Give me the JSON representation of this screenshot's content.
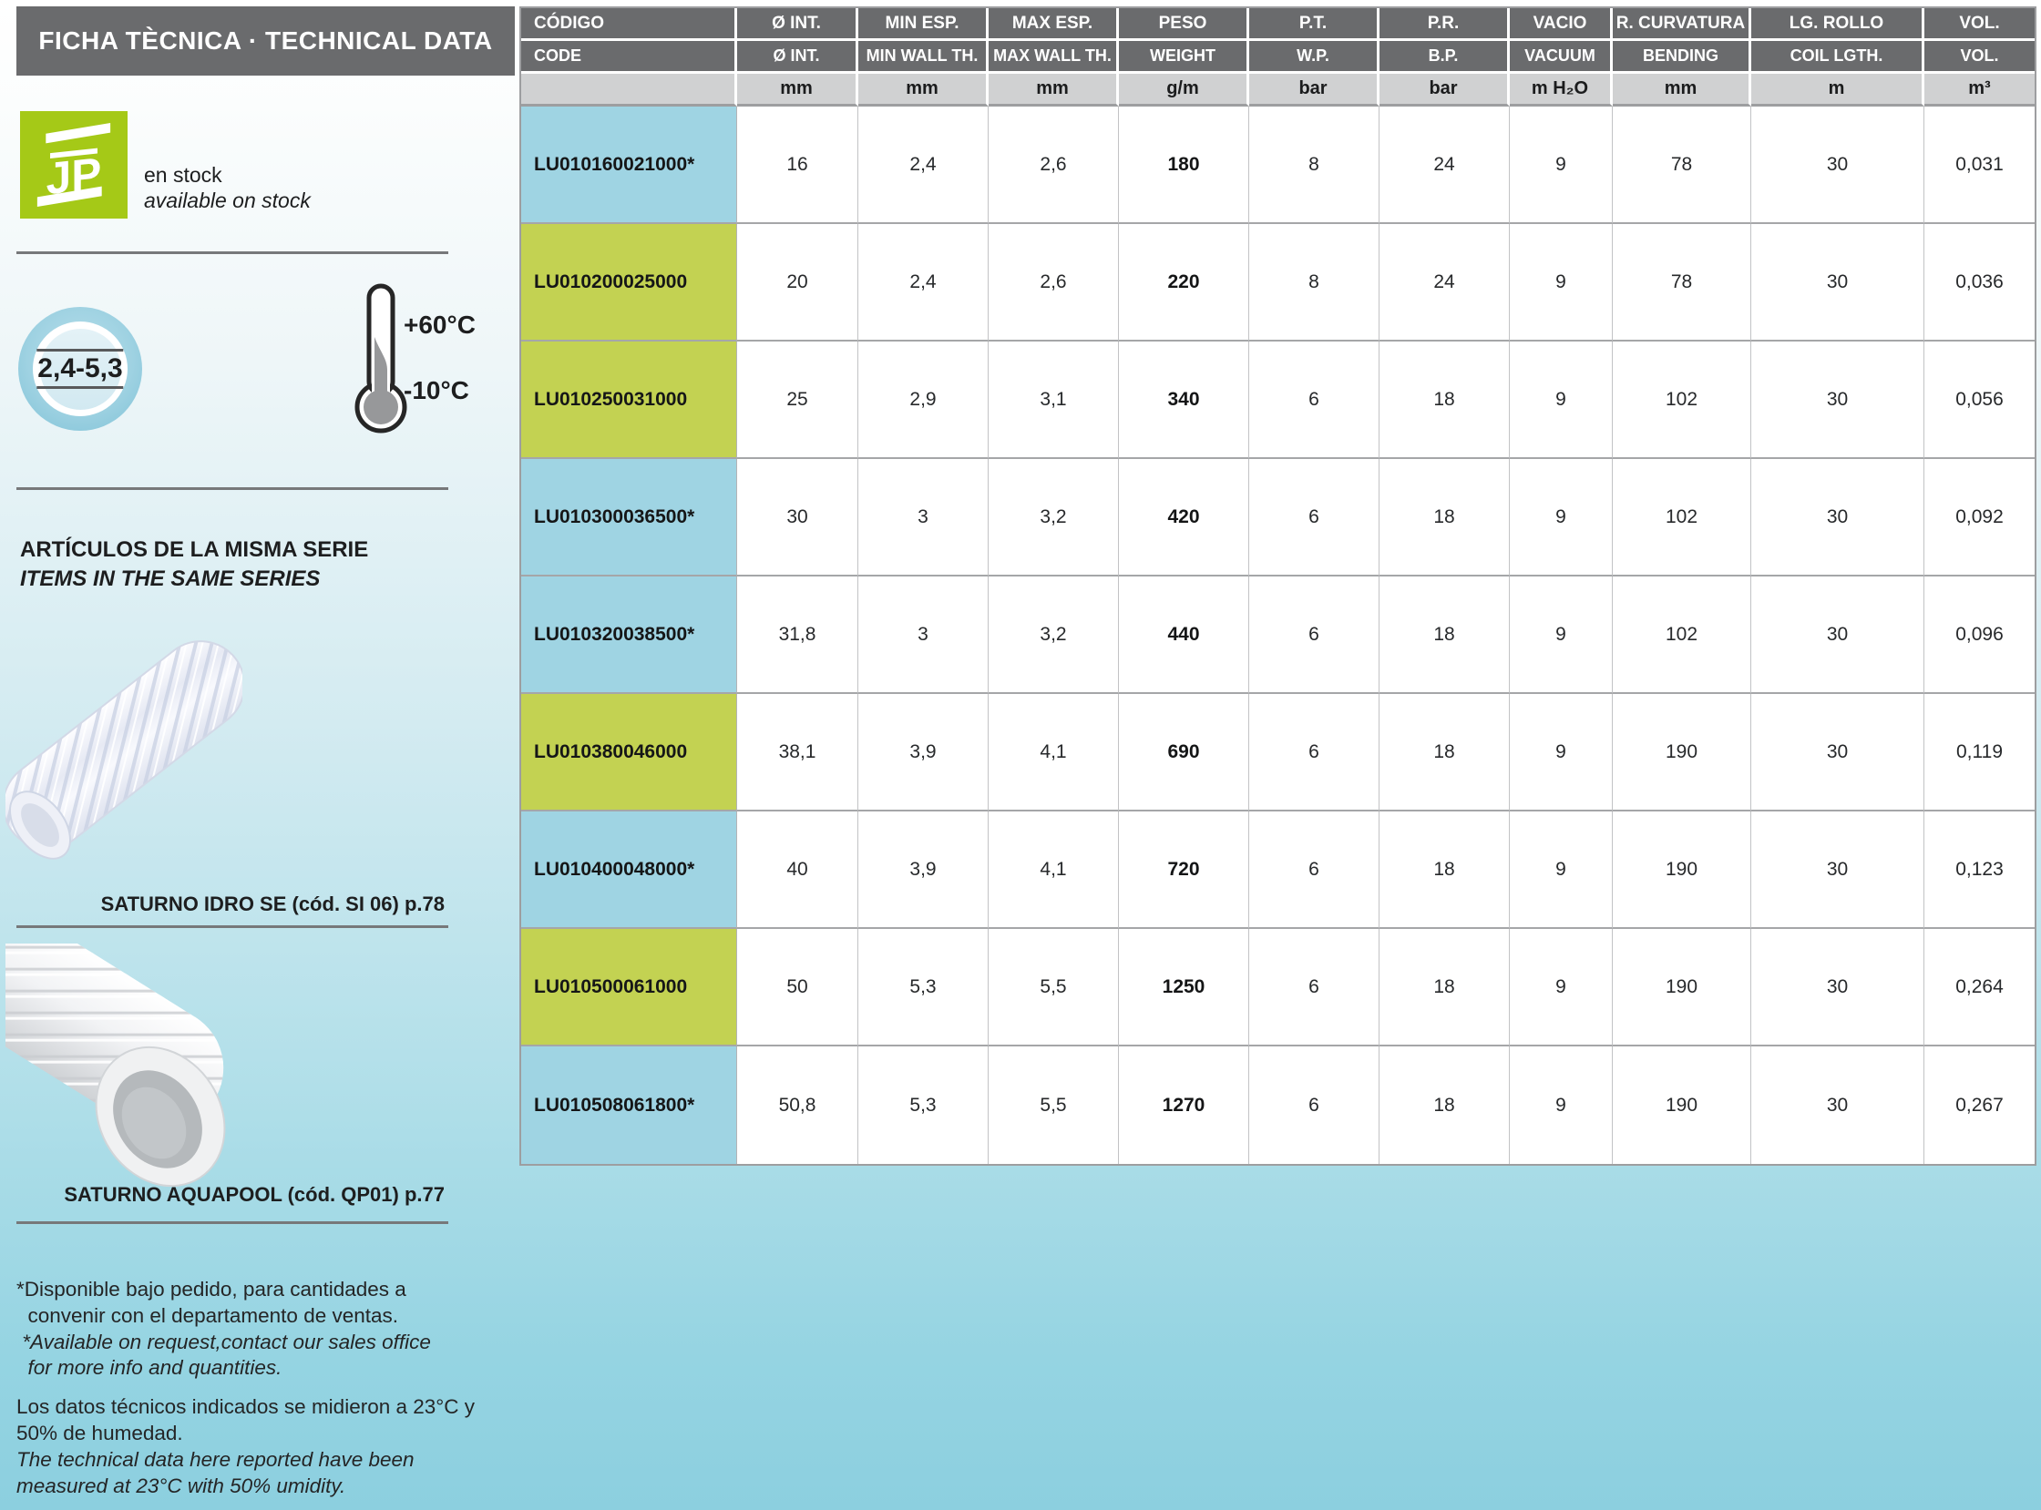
{
  "header": {
    "title": "FICHA TÈCNICA · TECHNICAL DATA"
  },
  "sidebar": {
    "stock": {
      "logo_text": "JP",
      "line1": "en stock",
      "line2": "available on stock"
    },
    "wall_thickness_badge": "2,4-5,3",
    "temperature": {
      "max": "+60°C",
      "min": "-10°C"
    },
    "series": {
      "title_es": "ARTÍCULOS DE LA MISMA SERIE",
      "title_en": "ITEMS IN THE SAME SERIES",
      "items": [
        {
          "caption": "SATURNO IDRO SE (cód. SI 06) p.78"
        },
        {
          "caption": "SATURNO AQUAPOOL (cód. QP01) p.77"
        }
      ]
    },
    "footnotes": [
      {
        "es": "*Disponible bajo pedido, para cantidades a\n  convenir con el departamento de ventas.",
        "en": " *Available on request,contact our sales office\n  for more info and quantities."
      },
      {
        "es": "Los datos técnicos indicados se midieron a 23°C y\n50% de humedad.",
        "en": "The technical data here reported have been\nmeasured at 23°C with 50% umidity."
      }
    ]
  },
  "table": {
    "columns": [
      {
        "es": "CÓDIGO",
        "en": "CODE",
        "unit": ""
      },
      {
        "es": "Ø INT.",
        "en": "Ø INT.",
        "unit": "mm"
      },
      {
        "es": "MIN ESP.",
        "en": "MIN WALL TH.",
        "unit": "mm"
      },
      {
        "es": "MAX ESP.",
        "en": "MAX WALL TH.",
        "unit": "mm"
      },
      {
        "es": "PESO",
        "en": "WEIGHT",
        "unit": "g/m"
      },
      {
        "es": "P.T.",
        "en": "W.P.",
        "unit": "bar"
      },
      {
        "es": "P.R.",
        "en": "B.P.",
        "unit": "bar"
      },
      {
        "es": "VACIO",
        "en": "VACUUM",
        "unit": "m H₂O"
      },
      {
        "es": "R. CURVATURA",
        "en": "BENDING",
        "unit": "mm"
      },
      {
        "es": "LG. ROLLO",
        "en": "COIL LGTH.",
        "unit": "m"
      },
      {
        "es": "VOL.",
        "en": "VOL.",
        "unit": "m³"
      }
    ],
    "rows": [
      {
        "code": "LU010160021000*",
        "highlight": "blue",
        "values": [
          "16",
          "2,4",
          "2,6",
          "180",
          "8",
          "24",
          "9",
          "78",
          "30",
          "0,031"
        ]
      },
      {
        "code": "LU010200025000",
        "highlight": "green",
        "values": [
          "20",
          "2,4",
          "2,6",
          "220",
          "8",
          "24",
          "9",
          "78",
          "30",
          "0,036"
        ]
      },
      {
        "code": "LU010250031000",
        "highlight": "green",
        "values": [
          "25",
          "2,9",
          "3,1",
          "340",
          "6",
          "18",
          "9",
          "102",
          "30",
          "0,056"
        ]
      },
      {
        "code": "LU010300036500*",
        "highlight": "blue",
        "values": [
          "30",
          "3",
          "3,2",
          "420",
          "6",
          "18",
          "9",
          "102",
          "30",
          "0,092"
        ]
      },
      {
        "code": "LU010320038500*",
        "highlight": "blue",
        "values": [
          "31,8",
          "3",
          "3,2",
          "440",
          "6",
          "18",
          "9",
          "102",
          "30",
          "0,096"
        ]
      },
      {
        "code": "LU010380046000",
        "highlight": "green",
        "values": [
          "38,1",
          "3,9",
          "4,1",
          "690",
          "6",
          "18",
          "9",
          "190",
          "30",
          "0,119"
        ]
      },
      {
        "code": "LU010400048000*",
        "highlight": "blue",
        "values": [
          "40",
          "3,9",
          "4,1",
          "720",
          "6",
          "18",
          "9",
          "190",
          "30",
          "0,123"
        ]
      },
      {
        "code": "LU010500061000",
        "highlight": "green",
        "values": [
          "50",
          "5,3",
          "5,5",
          "1250",
          "6",
          "18",
          "9",
          "190",
          "30",
          "0,264"
        ]
      },
      {
        "code": "LU010508061800*",
        "highlight": "blue",
        "values": [
          "50,8",
          "5,3",
          "5,5",
          "1270",
          "6",
          "18",
          "9",
          "190",
          "30",
          "0,267"
        ]
      }
    ]
  },
  "colors": {
    "header_gray": "#6a6b6d",
    "units_gray": "#d0d1d2",
    "row_blue": "#9fd4e3",
    "row_green": "#c3d252",
    "jp_green": "#a5c917",
    "background_top": "#ffffff",
    "background_bottom": "#8ccfdf"
  }
}
